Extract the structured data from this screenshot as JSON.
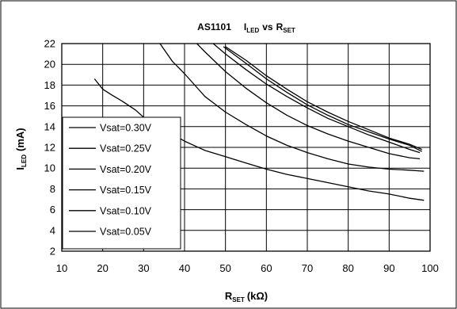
{
  "chart_data": {
    "type": "line",
    "title": {
      "main": "AS1101",
      "i_main": "I",
      "i_sub": "LED",
      "vs": "vs",
      "r_main": "R",
      "r_sub": "SET"
    },
    "xlabel": {
      "main": "R",
      "sub": "SET",
      "unit": "(kΩ)"
    },
    "ylabel": {
      "main": "I",
      "sub": "LED",
      "unit": "(mA)"
    },
    "xlim": [
      10,
      100
    ],
    "ylim": [
      2,
      22
    ],
    "xticks": [
      10,
      20,
      30,
      40,
      50,
      60,
      70,
      80,
      90,
      100
    ],
    "yticks": [
      2,
      4,
      6,
      8,
      10,
      12,
      14,
      16,
      18,
      20,
      22
    ],
    "grid": true,
    "legend_position": "bottom-left",
    "series": [
      {
        "name": "Vsat=0.30V",
        "points": [
          [
            50,
            21.7
          ],
          [
            55,
            20.4
          ],
          [
            60,
            18.9
          ],
          [
            65,
            17.6
          ],
          [
            70,
            16.4
          ],
          [
            75,
            15.4
          ],
          [
            80,
            14.5
          ],
          [
            85,
            13.7
          ],
          [
            90,
            12.9
          ],
          [
            95,
            12.3
          ],
          [
            98,
            11.8
          ]
        ]
      },
      {
        "name": "Vsat=0.25V",
        "points": [
          [
            49.5,
            21.7
          ],
          [
            55,
            20.1
          ],
          [
            60,
            18.6
          ],
          [
            65,
            17.3
          ],
          [
            70,
            16.1
          ],
          [
            75,
            15.1
          ],
          [
            80,
            14.2
          ],
          [
            85,
            13.5
          ],
          [
            90,
            12.8
          ],
          [
            95,
            12.2
          ],
          [
            98,
            11.6
          ]
        ]
      },
      {
        "name": "Vsat=0.20V",
        "points": [
          [
            47,
            22.0
          ],
          [
            50,
            21.0
          ],
          [
            55,
            19.5
          ],
          [
            60,
            18.1
          ],
          [
            65,
            16.9
          ],
          [
            70,
            15.8
          ],
          [
            75,
            14.8
          ],
          [
            80,
            14.0
          ],
          [
            85,
            13.2
          ],
          [
            90,
            12.5
          ],
          [
            95,
            11.8
          ],
          [
            97.5,
            11.5
          ]
        ]
      },
      {
        "name": "Vsat=0.15V",
        "points": [
          [
            43,
            22.0
          ],
          [
            45,
            21.2
          ],
          [
            50,
            19.3
          ],
          [
            55,
            17.7
          ],
          [
            60,
            16.3
          ],
          [
            65,
            15.1
          ],
          [
            70,
            14.1
          ],
          [
            75,
            13.3
          ],
          [
            80,
            12.6
          ],
          [
            85,
            12.0
          ],
          [
            90,
            11.4
          ],
          [
            95,
            11.0
          ],
          [
            97.5,
            10.9
          ]
        ]
      },
      {
        "name": "Vsat=0.10V",
        "points": [
          [
            34,
            22.0
          ],
          [
            37,
            20.3
          ],
          [
            40,
            19.1
          ],
          [
            45,
            16.9
          ],
          [
            50,
            15.4
          ],
          [
            55,
            14.2
          ],
          [
            60,
            13.1
          ],
          [
            65,
            12.2
          ],
          [
            70,
            11.5
          ],
          [
            75,
            10.9
          ],
          [
            80,
            10.4
          ],
          [
            85,
            10.1
          ],
          [
            90,
            9.9
          ],
          [
            95,
            9.8
          ],
          [
            98.5,
            9.7
          ]
        ]
      },
      {
        "name": "Vsat=0.05V",
        "points": [
          [
            18,
            18.6
          ],
          [
            20,
            17.6
          ],
          [
            22,
            17.1
          ],
          [
            25,
            16.4
          ],
          [
            28,
            15.6
          ],
          [
            30,
            14.9
          ],
          [
            35,
            13.7
          ],
          [
            40,
            12.6
          ],
          [
            45,
            11.7
          ],
          [
            50,
            11.1
          ],
          [
            55,
            10.5
          ],
          [
            60,
            9.9
          ],
          [
            65,
            9.4
          ],
          [
            70,
            9.0
          ],
          [
            75,
            8.6
          ],
          [
            80,
            8.2
          ],
          [
            85,
            7.8
          ],
          [
            90,
            7.5
          ],
          [
            95,
            7.1
          ],
          [
            98.5,
            6.9
          ]
        ]
      }
    ]
  }
}
